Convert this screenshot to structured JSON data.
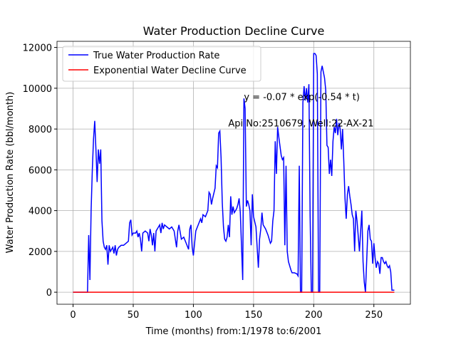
{
  "chart_data": {
    "type": "line",
    "title": "Water Production Decline Curve",
    "xlabel": "Time (months) from:1/1978 to:6/2001",
    "ylabel": "Water Production Rate (bbl/month)",
    "xlim": [
      -13.35,
      280.35
    ],
    "ylim": [
      -590,
      12300
    ],
    "xticks": [
      0,
      50,
      100,
      150,
      200,
      250
    ],
    "yticks": [
      0,
      2000,
      4000,
      6000,
      8000,
      10000,
      12000
    ],
    "grid": true,
    "legend": "upper left",
    "annotations": [
      {
        "text": "y = -0.07 * exp(-0.54 * t)",
        "x": 142,
        "y": 9600
      },
      {
        "text": "Api No:2510679, Well:22-AX-21",
        "x": 129,
        "y": 8300
      }
    ],
    "series": [
      {
        "name": "True Water Production Rate",
        "color": "#0000ff",
        "x": [
          0,
          12,
          13,
          14,
          15,
          16,
          17,
          18,
          19,
          20,
          21,
          22,
          23,
          24,
          25,
          26,
          27,
          28,
          29,
          30,
          31,
          32,
          33,
          34,
          35,
          36,
          37,
          38,
          40,
          42,
          44,
          46,
          47,
          48,
          49,
          50,
          52,
          53,
          54,
          55,
          56,
          57,
          58,
          60,
          62,
          63,
          64,
          65,
          66,
          67,
          68,
          69,
          70,
          72,
          73,
          74,
          75,
          76,
          78,
          80,
          82,
          84,
          86,
          87,
          88,
          90,
          92,
          94,
          96,
          97,
          98,
          99,
          100,
          102,
          104,
          106,
          107,
          108,
          110,
          112,
          113,
          114,
          115,
          116,
          118,
          119,
          120,
          121,
          122,
          123,
          124,
          125,
          126,
          127,
          128,
          129,
          130,
          131,
          132,
          133,
          134,
          135,
          136,
          137,
          138,
          139,
          141,
          142,
          143,
          144,
          145,
          146,
          147,
          148,
          149,
          150,
          152,
          154,
          155,
          156,
          157,
          158,
          160,
          162,
          164,
          165,
          166,
          167,
          168,
          169,
          170,
          171,
          173,
          174,
          175,
          176,
          177,
          178,
          179,
          180,
          181,
          182,
          184,
          186,
          187,
          188,
          189,
          190,
          191,
          192,
          193,
          194,
          195,
          196,
          197,
          198,
          199,
          200,
          201,
          202,
          203,
          204,
          205,
          206,
          207,
          208,
          209,
          210,
          211,
          212,
          213,
          214,
          215,
          216,
          217,
          218,
          219,
          220,
          221,
          222,
          223,
          224,
          225,
          226,
          227,
          228,
          229,
          230,
          231,
          232,
          233,
          234,
          235,
          236,
          238,
          240,
          241,
          242,
          243,
          244,
          245,
          246,
          247,
          248,
          249,
          250,
          251,
          252,
          253,
          254,
          255,
          256,
          257,
          258,
          259,
          260,
          261,
          262,
          263,
          264,
          265,
          267
        ],
        "values": [
          0,
          0,
          2800,
          600,
          4000,
          6000,
          7500,
          8400,
          7000,
          5400,
          7000,
          6300,
          7000,
          3500,
          2500,
          2200,
          2100,
          2300,
          1350,
          2300,
          2000,
          2100,
          2200,
          1900,
          2300,
          1800,
          2100,
          2200,
          2300,
          2300,
          2400,
          2500,
          3400,
          3550,
          2800,
          2900,
          2900,
          3000,
          2700,
          2900,
          2600,
          2000,
          2900,
          3000,
          2900,
          2500,
          3100,
          2800,
          2300,
          2900,
          2000,
          3000,
          3100,
          3300,
          2900,
          3400,
          3100,
          3300,
          3200,
          3100,
          3200,
          3000,
          2200,
          3000,
          3300,
          2600,
          2700,
          2400,
          2100,
          3100,
          3300,
          2200,
          1800,
          3000,
          3300,
          3600,
          3400,
          3800,
          3700,
          4000,
          4900,
          4800,
          4300,
          4600,
          5100,
          6200,
          6100,
          7800,
          7900,
          6600,
          4400,
          3200,
          2600,
          2500,
          2700,
          3300,
          2700,
          4700,
          3800,
          4200,
          3900,
          4000,
          4100,
          4300,
          4600,
          3900,
          600,
          9500,
          9000,
          4200,
          4500,
          4300,
          4000,
          2300,
          4800,
          3700,
          3200,
          1200,
          2600,
          3100,
          3900,
          3300,
          3100,
          2800,
          2400,
          2500,
          3500,
          4000,
          7400,
          5800,
          8100,
          7600,
          6700,
          6500,
          6600,
          2300,
          6200,
          2000,
          1500,
          1300,
          1100,
          950,
          950,
          900,
          800,
          6200,
          0,
          0,
          9300,
          10100,
          9400,
          10000,
          9300,
          10200,
          3800,
          0,
          0,
          11700,
          11700,
          11600,
          10700,
          0,
          0,
          10800,
          11100,
          10800,
          10500,
          9900,
          7200,
          7100,
          5800,
          6500,
          5700,
          7400,
          8100,
          7800,
          8500,
          7700,
          8300,
          8000,
          7000,
          8000,
          6400,
          4600,
          3600,
          4800,
          5200,
          4700,
          4300,
          3800,
          3600,
          2000,
          4000,
          3500,
          2000,
          4000,
          1500,
          500,
          0,
          1500,
          3000,
          3300,
          2600,
          2500,
          1400,
          2400,
          1700,
          1200,
          1500,
          1400,
          900,
          1700,
          1700,
          1500,
          1400,
          1500,
          1300,
          1200,
          1300,
          1000,
          100,
          100
        ]
      },
      {
        "name": "Exponential Water Decline Curve",
        "color": "#ff0000",
        "x": [
          0,
          267
        ],
        "values": [
          -0.07,
          0
        ]
      }
    ]
  }
}
